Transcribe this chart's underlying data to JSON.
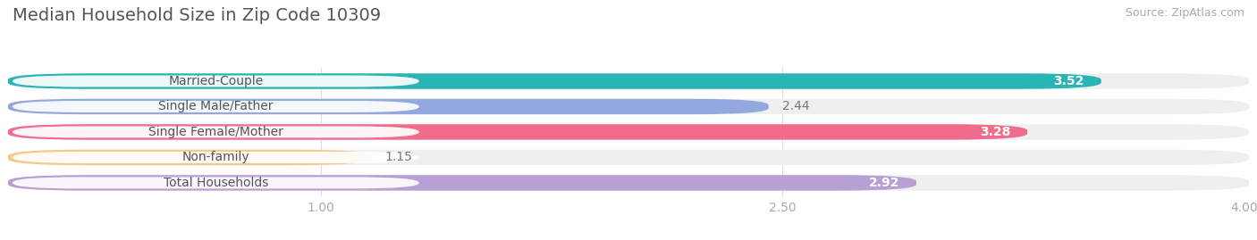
{
  "title": "Median Household Size in Zip Code 10309",
  "source": "Source: ZipAtlas.com",
  "categories": [
    "Married-Couple",
    "Single Male/Father",
    "Single Female/Mother",
    "Non-family",
    "Total Households"
  ],
  "values": [
    3.52,
    2.44,
    3.28,
    1.15,
    2.92
  ],
  "bar_colors": [
    "#29b5b5",
    "#92a8df",
    "#f06b8c",
    "#f5c98a",
    "#b89fd4"
  ],
  "value_label_colors": [
    "#ffffff",
    "#777777",
    "#ffffff",
    "#777777",
    "#ffffff"
  ],
  "value_inside": [
    true,
    false,
    true,
    false,
    true
  ],
  "xlim": [
    0.0,
    4.0
  ],
  "xmin": 0.0,
  "xticks": [
    1.0,
    2.5,
    4.0
  ],
  "xlabel_fontsize": 10,
  "title_fontsize": 14,
  "source_fontsize": 9,
  "background_color": "#ffffff",
  "bar_bg_color": "#efefef",
  "label_fontsize": 10,
  "value_fontsize": 10,
  "bar_height": 0.58,
  "bar_gap": 0.3
}
